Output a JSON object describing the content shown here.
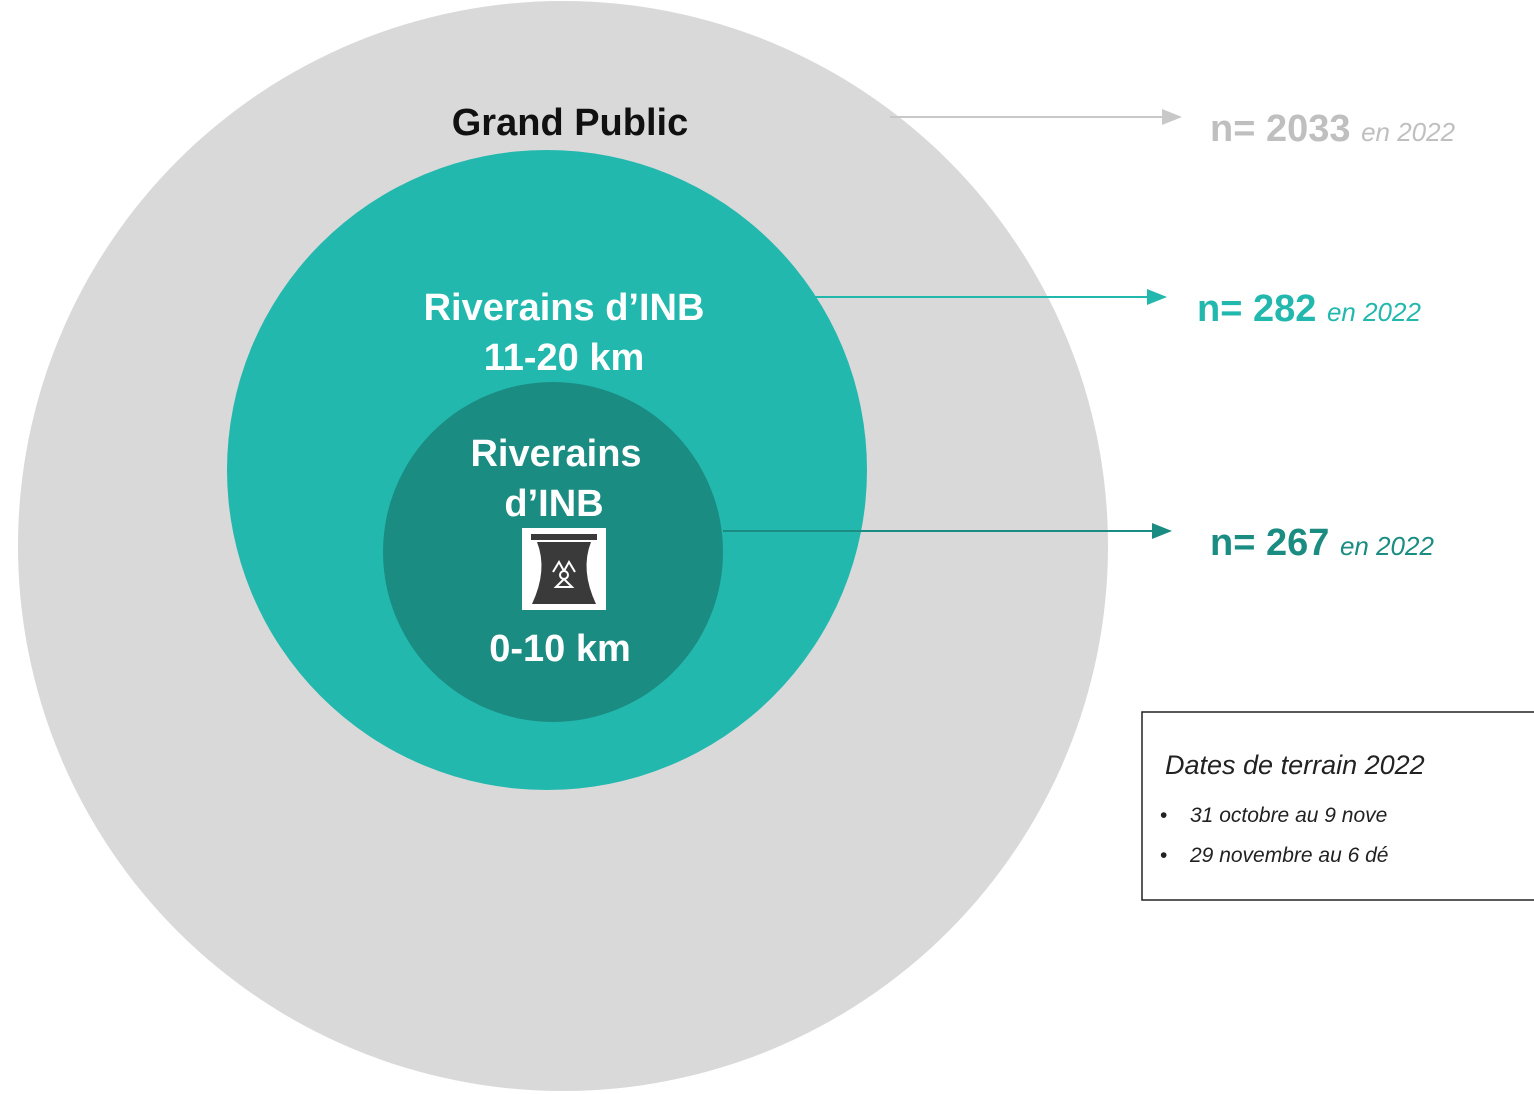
{
  "rings": [
    {
      "label_lines": [
        "Grand Public"
      ],
      "count": "n= 2033",
      "year": "en 2022"
    },
    {
      "label_lines": [
        "Riverains d’INB",
        "11-20 km"
      ],
      "count": "n= 282",
      "year": "en 2022"
    },
    {
      "label_lines": [
        "Riverains",
        "d’INB",
        "0-10 km"
      ],
      "count": "n= 267",
      "year": "en 2022"
    }
  ],
  "note": {
    "title": "Dates de terrain 2022",
    "items": [
      "31 octobre au 9 nove",
      "29 novembre au 6 dé"
    ]
  }
}
